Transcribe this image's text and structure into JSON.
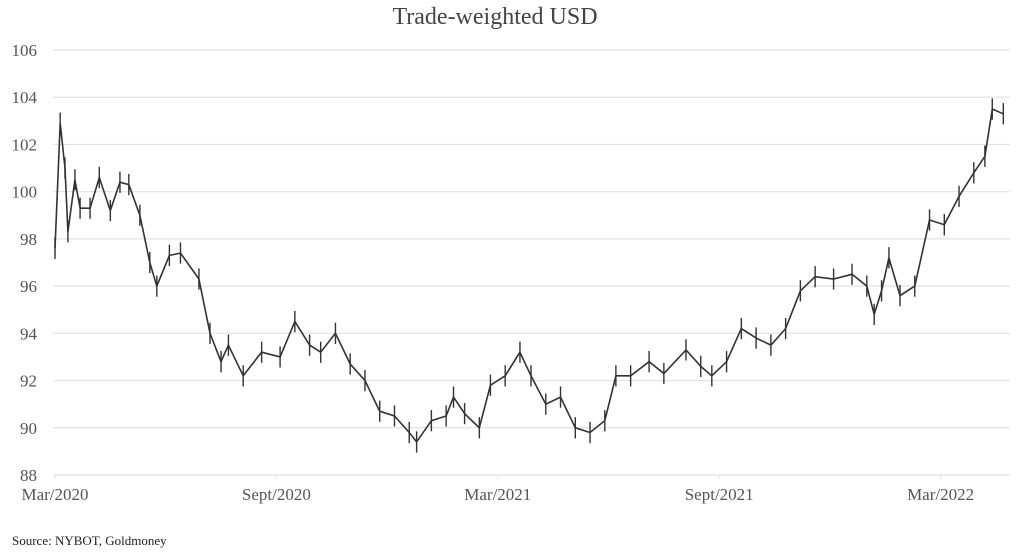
{
  "chart_data": {
    "type": "line",
    "title": "Trade-weighted USD",
    "xlabel": "",
    "ylabel": "",
    "ylim": [
      88,
      106
    ],
    "yticks": [
      88,
      90,
      92,
      94,
      96,
      98,
      100,
      102,
      104,
      106
    ],
    "xticks": [
      {
        "label": "Mar/2020",
        "month_offset": 0
      },
      {
        "label": "Sept/2020",
        "month_offset": 6
      },
      {
        "label": "Mar/2021",
        "month_offset": 12
      },
      {
        "label": "Sept/2021",
        "month_offset": 18
      },
      {
        "label": "Mar/2022",
        "month_offset": 24
      }
    ],
    "xlim_months": [
      0,
      25.9
    ],
    "grid": true,
    "legend": "none",
    "series": [
      {
        "name": "Trade-weighted USD",
        "x_months": [
          0,
          0.14,
          0.27,
          0.35,
          0.54,
          0.68,
          0.95,
          1.2,
          1.5,
          1.76,
          2.0,
          2.3,
          2.57,
          2.76,
          3.1,
          3.4,
          3.9,
          4.2,
          4.5,
          4.7,
          5.1,
          5.6,
          6.1,
          6.5,
          6.9,
          7.2,
          7.6,
          8.0,
          8.4,
          8.8,
          9.2,
          9.6,
          9.8,
          10.2,
          10.6,
          10.8,
          11.1,
          11.5,
          11.8,
          12.2,
          12.6,
          12.9,
          13.3,
          13.7,
          14.1,
          14.5,
          14.9,
          15.2,
          15.6,
          16.1,
          16.5,
          17.1,
          17.5,
          17.8,
          18.2,
          18.6,
          19.0,
          19.4,
          19.8,
          20.2,
          20.6,
          21.1,
          21.6,
          22.0,
          22.2,
          22.4,
          22.6,
          22.9,
          23.3,
          23.7,
          24.1,
          24.5,
          24.9,
          25.2,
          25.4,
          25.7
        ],
        "values": [
          97.6,
          102.9,
          101.0,
          98.3,
          100.5,
          99.3,
          99.3,
          100.6,
          99.2,
          100.4,
          100.3,
          99.0,
          97.0,
          96.0,
          97.3,
          97.4,
          96.3,
          94.0,
          92.8,
          93.5,
          92.2,
          93.2,
          93.0,
          94.5,
          93.5,
          93.2,
          94.0,
          92.7,
          92.0,
          90.7,
          90.5,
          89.8,
          89.4,
          90.3,
          90.5,
          91.3,
          90.6,
          90.0,
          91.8,
          92.2,
          93.2,
          92.2,
          91.0,
          91.3,
          90.0,
          89.8,
          90.3,
          92.2,
          92.2,
          92.8,
          92.3,
          93.3,
          92.6,
          92.2,
          92.8,
          94.2,
          93.8,
          93.5,
          94.2,
          95.8,
          96.4,
          96.3,
          96.5,
          96.0,
          94.8,
          95.8,
          97.2,
          95.6,
          96.0,
          98.8,
          98.6,
          99.8,
          100.8,
          101.5,
          103.5,
          103.3
        ]
      }
    ],
    "source": "Source: NYBOT, Goldmoney"
  },
  "colors": {
    "line": "#333333",
    "grid": "#e2e2e2"
  }
}
